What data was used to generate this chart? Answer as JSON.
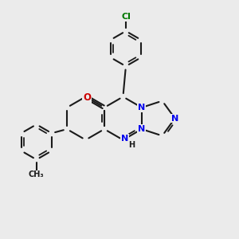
{
  "bg_color": "#ebebeb",
  "bond_color": "#1a1a1a",
  "bond_width": 1.5,
  "atom_colors": {
    "N": "#0000ee",
    "O": "#cc0000",
    "Cl": "#007700",
    "C": "#1a1a1a",
    "H": "#1a1a1a"
  },
  "fs": 8.0,
  "fss": 6.5
}
